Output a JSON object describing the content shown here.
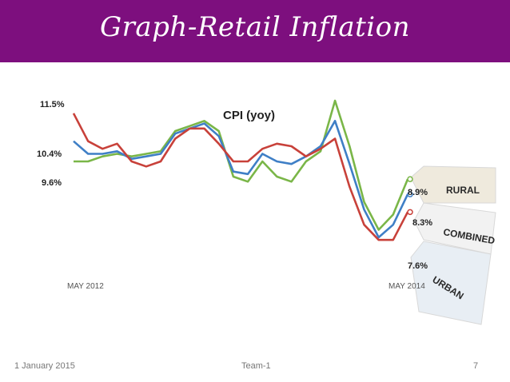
{
  "slide": {
    "title": "Graph-Retail Inflation",
    "footer_date": "1 January 2015",
    "footer_team": "Team-1",
    "footer_page": "7"
  },
  "colors": {
    "title_bar": "#7d0f7e",
    "rural": "#7ab648",
    "combined": "#3f7fc6",
    "urban": "#c8413a"
  },
  "chart_data": {
    "type": "line",
    "title": "CPI (yoy)",
    "x_start_label": "MAY 2012",
    "x_end_label": "MAY 2014",
    "ylim": [
      6.0,
      12.0
    ],
    "y_start_labels": [
      "11.5%",
      "10.4%",
      "9.6%"
    ],
    "series": [
      {
        "name": "RURAL",
        "end_label": "8.9%",
        "values": [
          9.6,
          9.6,
          9.8,
          9.9,
          9.8,
          9.9,
          10.0,
          10.8,
          11.0,
          11.2,
          10.8,
          9.0,
          8.8,
          9.6,
          9.0,
          8.8,
          9.6,
          10.0,
          12.0,
          10.2,
          8.0,
          6.9,
          7.5,
          8.9
        ]
      },
      {
        "name": "COMBINED",
        "end_label": "8.3%",
        "values": [
          10.4,
          9.9,
          9.9,
          10.0,
          9.7,
          9.8,
          9.9,
          10.7,
          10.9,
          11.1,
          10.6,
          9.2,
          9.1,
          9.9,
          9.6,
          9.5,
          9.8,
          10.2,
          11.2,
          9.5,
          7.7,
          6.6,
          7.1,
          8.3
        ]
      },
      {
        "name": "URBAN",
        "end_label": "7.6%",
        "values": [
          11.5,
          10.4,
          10.1,
          10.3,
          9.6,
          9.4,
          9.6,
          10.5,
          10.9,
          10.9,
          10.3,
          9.6,
          9.6,
          10.1,
          10.3,
          10.2,
          9.8,
          10.1,
          10.5,
          8.6,
          7.1,
          6.5,
          6.5,
          7.6
        ]
      }
    ]
  }
}
